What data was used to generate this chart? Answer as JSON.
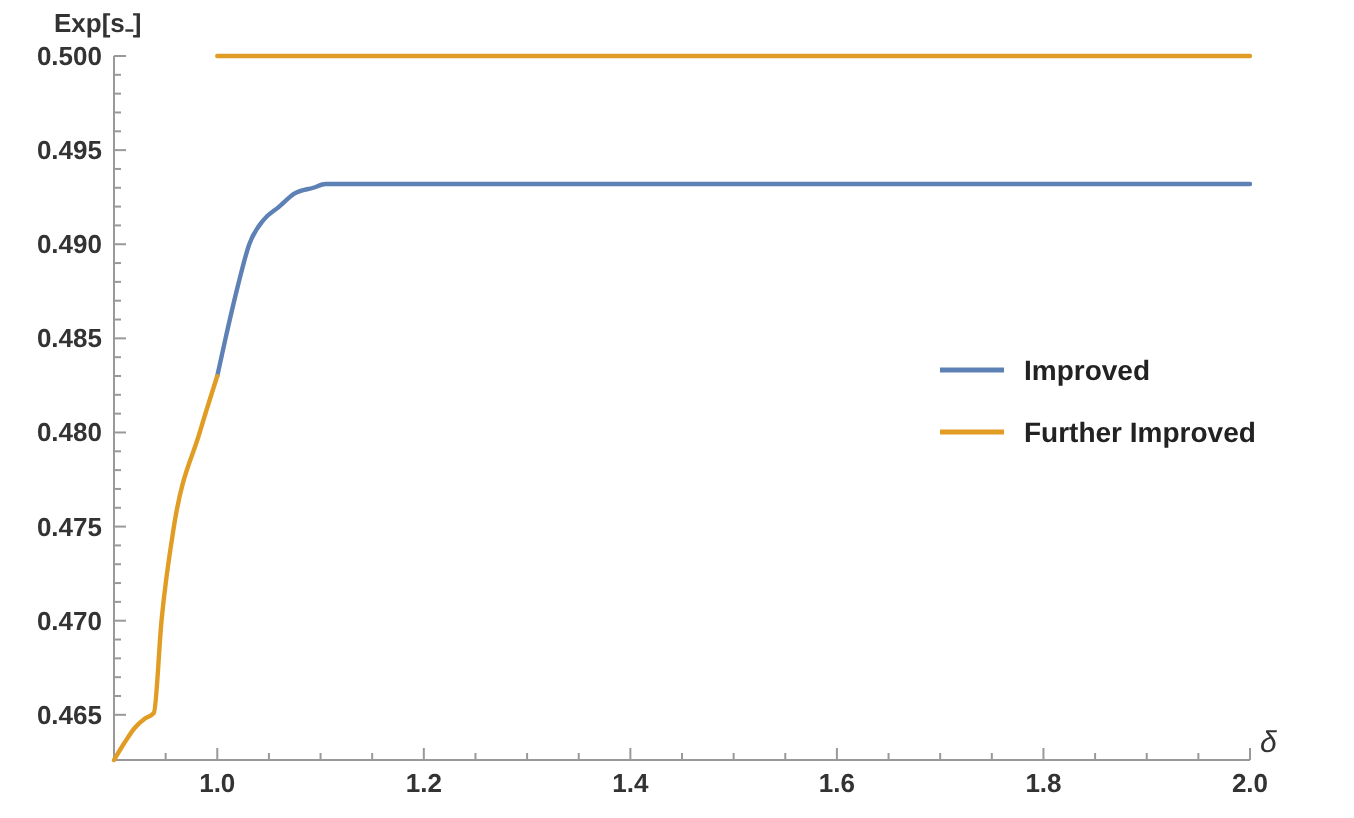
{
  "chart_data": {
    "type": "line",
    "xlabel": "δ",
    "ylabel": "Exp[s₋]",
    "xlim": [
      0.9,
      2.0
    ],
    "ylim": [
      0.4626,
      0.5
    ],
    "xticks": [
      {
        "value": 0.9,
        "label": null
      },
      {
        "value": 0.95,
        "label": null
      },
      {
        "value": 1.0,
        "label": "1.0"
      },
      {
        "value": 1.05,
        "label": null
      },
      {
        "value": 1.1,
        "label": null
      },
      {
        "value": 1.15,
        "label": null
      },
      {
        "value": 1.2,
        "label": "1.2"
      },
      {
        "value": 1.25,
        "label": null
      },
      {
        "value": 1.3,
        "label": null
      },
      {
        "value": 1.35,
        "label": null
      },
      {
        "value": 1.4,
        "label": "1.4"
      },
      {
        "value": 1.45,
        "label": null
      },
      {
        "value": 1.5,
        "label": null
      },
      {
        "value": 1.55,
        "label": null
      },
      {
        "value": 1.6,
        "label": "1.6"
      },
      {
        "value": 1.65,
        "label": null
      },
      {
        "value": 1.7,
        "label": null
      },
      {
        "value": 1.75,
        "label": null
      },
      {
        "value": 1.8,
        "label": "1.8"
      },
      {
        "value": 1.85,
        "label": null
      },
      {
        "value": 1.9,
        "label": null
      },
      {
        "value": 1.95,
        "label": null
      },
      {
        "value": 2.0,
        "label": "2.0"
      }
    ],
    "yticks": [
      {
        "value": 0.465,
        "label": "0.465"
      },
      {
        "value": 0.466,
        "label": null
      },
      {
        "value": 0.467,
        "label": null
      },
      {
        "value": 0.468,
        "label": null
      },
      {
        "value": 0.469,
        "label": null
      },
      {
        "value": 0.47,
        "label": "0.470"
      },
      {
        "value": 0.471,
        "label": null
      },
      {
        "value": 0.472,
        "label": null
      },
      {
        "value": 0.473,
        "label": null
      },
      {
        "value": 0.474,
        "label": null
      },
      {
        "value": 0.475,
        "label": "0.475"
      },
      {
        "value": 0.476,
        "label": null
      },
      {
        "value": 0.477,
        "label": null
      },
      {
        "value": 0.478,
        "label": null
      },
      {
        "value": 0.479,
        "label": null
      },
      {
        "value": 0.48,
        "label": "0.480"
      },
      {
        "value": 0.481,
        "label": null
      },
      {
        "value": 0.482,
        "label": null
      },
      {
        "value": 0.483,
        "label": null
      },
      {
        "value": 0.484,
        "label": null
      },
      {
        "value": 0.485,
        "label": "0.485"
      },
      {
        "value": 0.486,
        "label": null
      },
      {
        "value": 0.487,
        "label": null
      },
      {
        "value": 0.488,
        "label": null
      },
      {
        "value": 0.489,
        "label": null
      },
      {
        "value": 0.49,
        "label": "0.490"
      },
      {
        "value": 0.491,
        "label": null
      },
      {
        "value": 0.492,
        "label": null
      },
      {
        "value": 0.493,
        "label": null
      },
      {
        "value": 0.494,
        "label": null
      },
      {
        "value": 0.495,
        "label": "0.495"
      },
      {
        "value": 0.496,
        "label": null
      },
      {
        "value": 0.497,
        "label": null
      },
      {
        "value": 0.498,
        "label": null
      },
      {
        "value": 0.499,
        "label": null
      },
      {
        "value": 0.5,
        "label": "0.500"
      }
    ],
    "grid": false,
    "legend": "right",
    "marker": "none",
    "line_style": "solid",
    "series": [
      {
        "name": "Improved",
        "color": "#5e81b5",
        "x": [
          1.0,
          1.008,
          1.02,
          1.031,
          1.045,
          1.06,
          1.075,
          1.093,
          1.105,
          1.114,
          2.0
        ],
        "values": [
          0.483,
          0.485,
          0.4878,
          0.49,
          0.4913,
          0.492,
          0.4927,
          0.493,
          0.4932,
          0.4932,
          0.4932
        ]
      },
      {
        "name": "Further Improved",
        "color": "#e19c24",
        "x": [
          0.9,
          0.91,
          0.92,
          0.93,
          0.9386,
          0.946,
          0.958,
          0.983,
          1.0
        ],
        "values": [
          0.4626,
          0.4635,
          0.4643,
          0.4648,
          0.4651,
          0.47,
          0.475,
          0.48,
          0.483
        ]
      },
      {
        "color": "#e19c24",
        "x": [
          1.0,
          2.0
        ],
        "values": [
          0.5,
          0.5
        ]
      }
    ]
  }
}
